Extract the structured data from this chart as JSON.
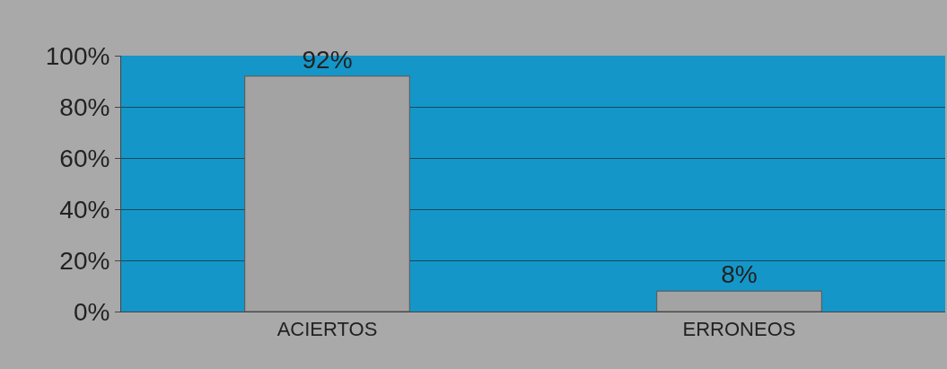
{
  "chart_data": {
    "type": "bar",
    "categories": [
      "ACIERTOS",
      "ERRONEOS"
    ],
    "values": [
      92,
      8
    ],
    "value_labels": [
      "92%",
      "8%"
    ],
    "color": "#a3a3a3",
    "ylim": [
      0,
      100
    ],
    "yticks": [
      {
        "value": 0,
        "label": "0%"
      },
      {
        "value": 20,
        "label": "20%"
      },
      {
        "value": 40,
        "label": "40%"
      },
      {
        "value": 60,
        "label": "60%"
      },
      {
        "value": 80,
        "label": "80%"
      },
      {
        "value": 100,
        "label": "100%"
      }
    ],
    "grid": "y"
  }
}
